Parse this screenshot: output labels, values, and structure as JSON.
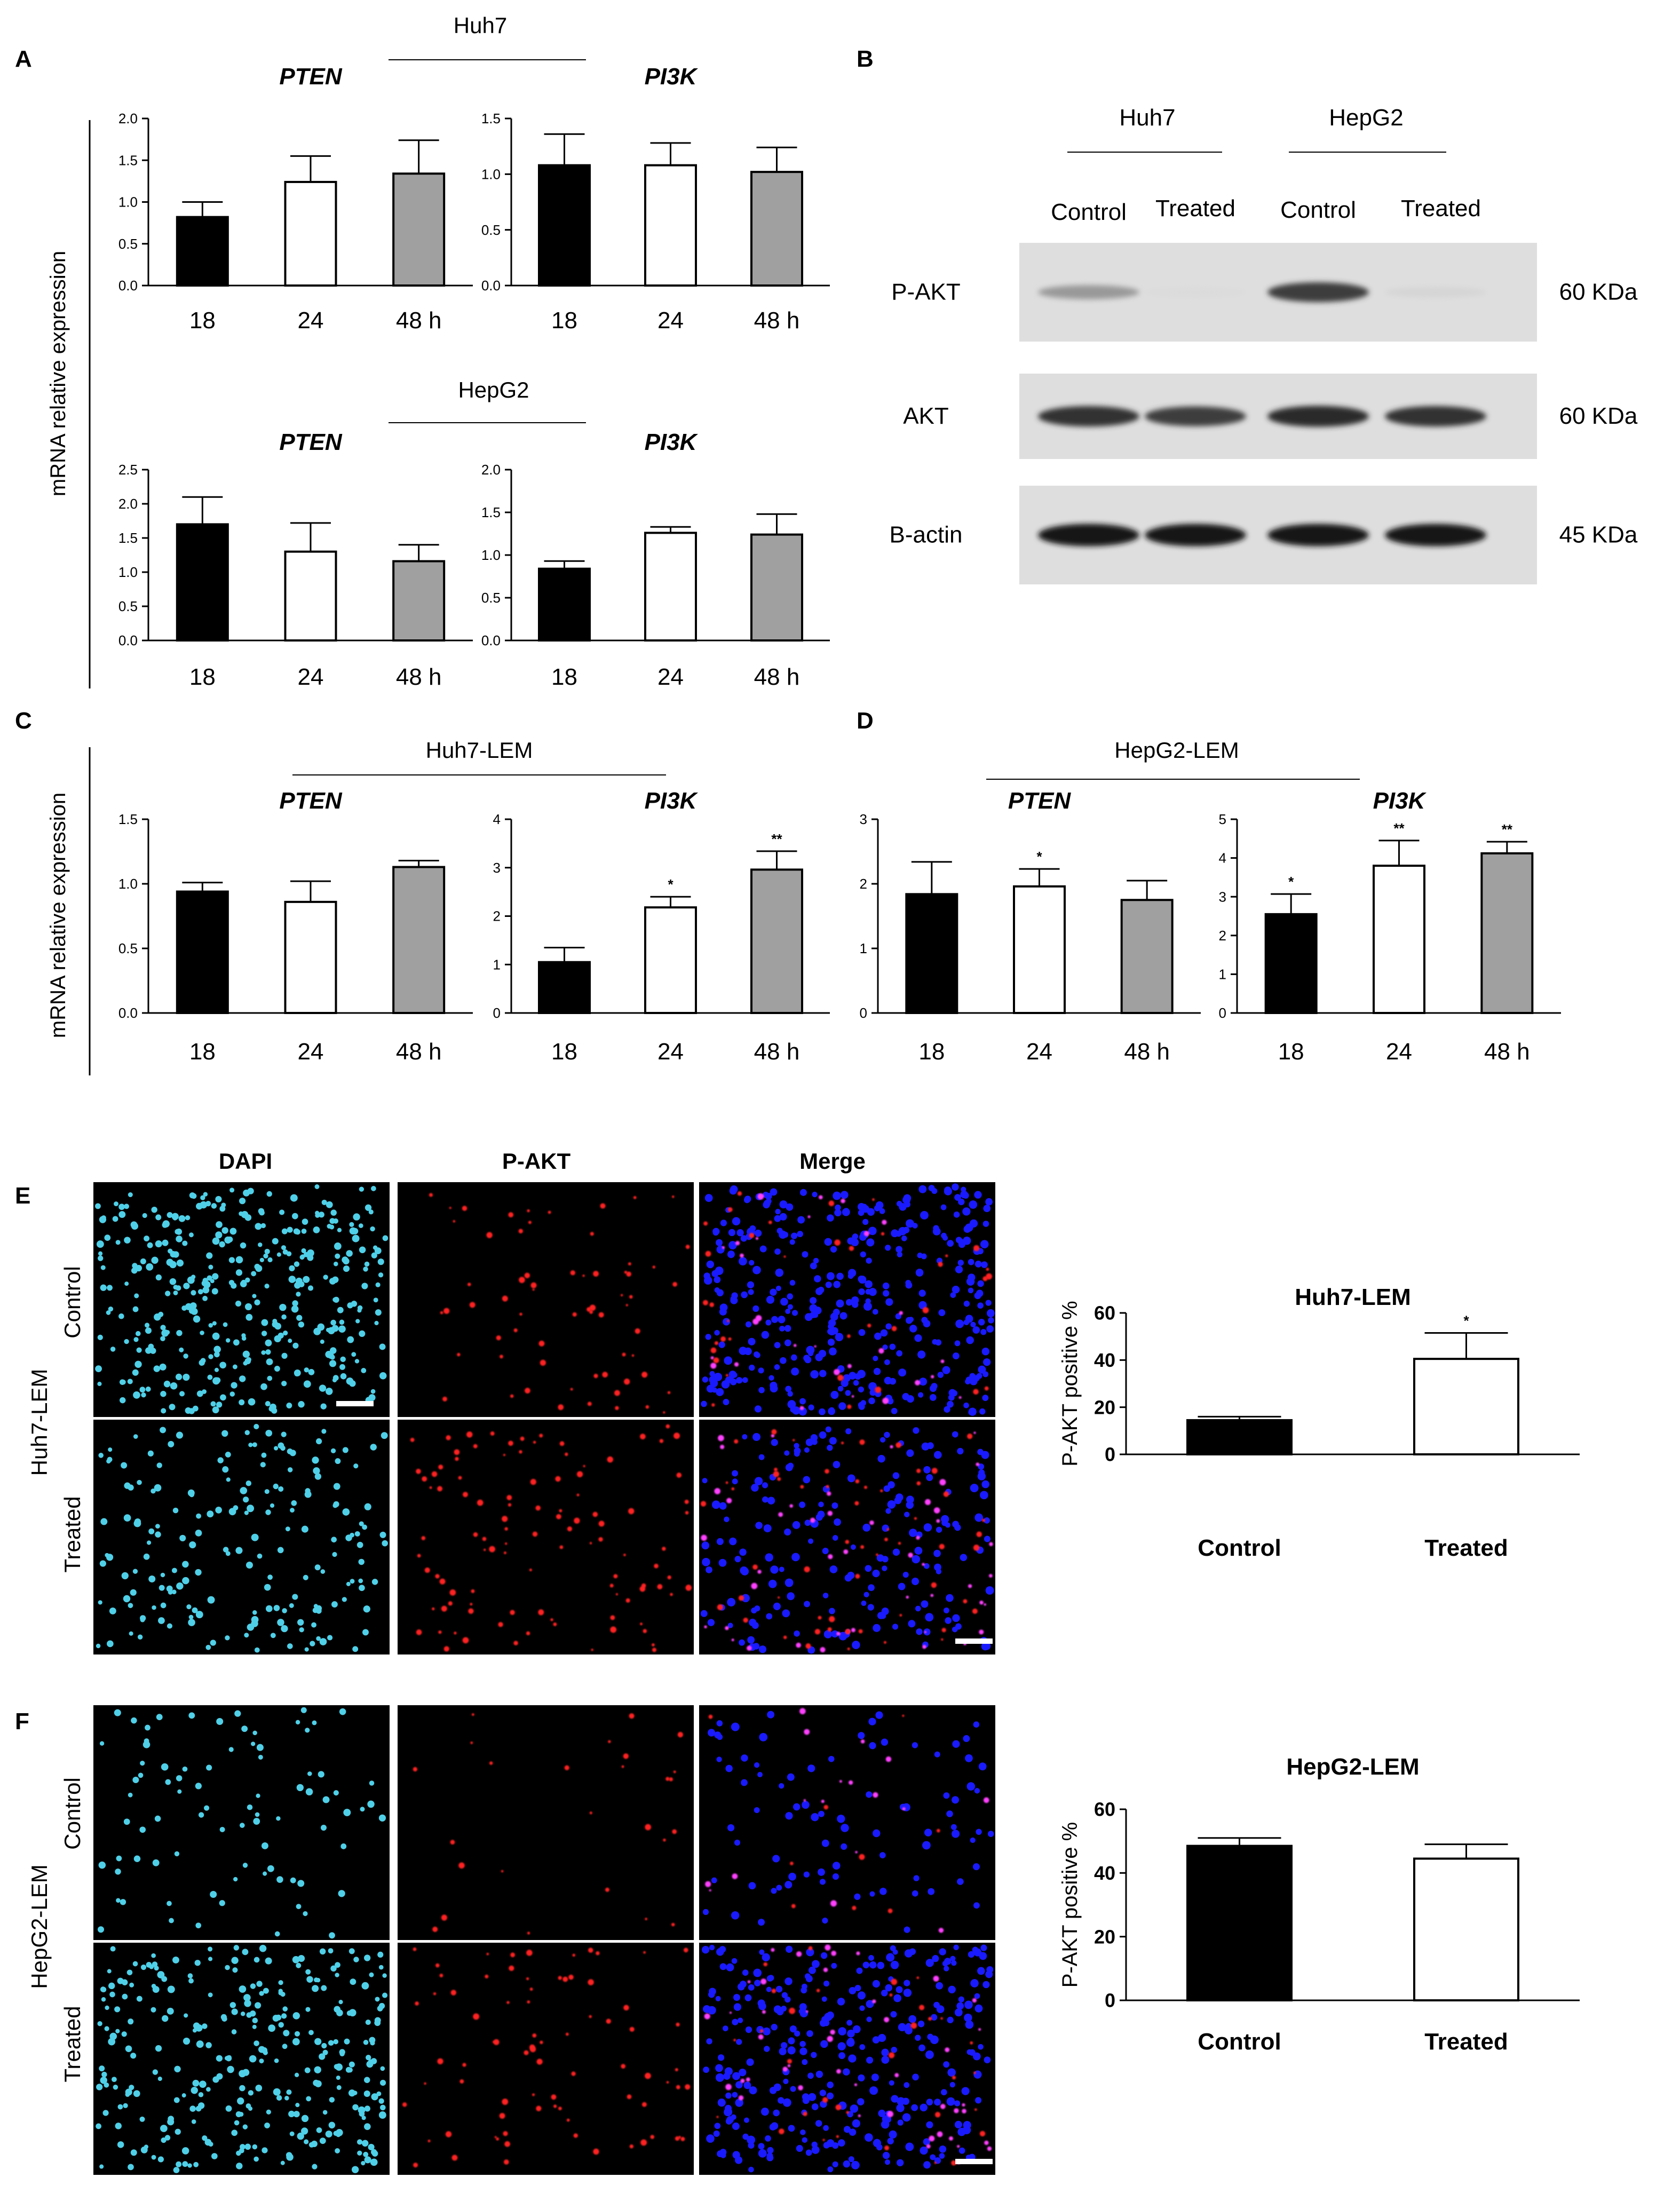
{
  "panel_labels": [
    "A",
    "B",
    "C",
    "D",
    "E",
    "F"
  ],
  "colors": {
    "bar_18": "#000000",
    "bar_24": "#ffffff",
    "bar_48": "#a0a0a0",
    "dapi": "#4fd0e8",
    "pakt": "#ff2020",
    "merge_blue": "#1a1aff",
    "merge_pink": "#ff40ff",
    "if_bg": "#000000"
  },
  "panelA": {
    "y_axis_label": "mRNA relative expression",
    "group_huh7": "Huh7",
    "group_hepg2": "HepG2"
  },
  "panelB": {
    "group_huh7": "Huh7",
    "group_hepg2": "HepG2",
    "lanes": [
      "Control",
      "Treated",
      "Control",
      "Treated"
    ],
    "rows": [
      {
        "label": "P-AKT",
        "size": "60 KDa",
        "intensity": [
          0.35,
          0.03,
          0.8,
          0.06
        ]
      },
      {
        "label": "AKT",
        "size": "60 KDa",
        "intensity": [
          0.85,
          0.8,
          0.9,
          0.85
        ]
      },
      {
        "label": "B-actin",
        "size": "45 KDa",
        "intensity": [
          1.0,
          1.0,
          1.0,
          1.0
        ]
      }
    ]
  },
  "panelC": {
    "y_axis_label": "mRNA relative expression",
    "group": "Huh7-LEM"
  },
  "panelD": {
    "group": "HepG2-LEM"
  },
  "panelE": {
    "columns": [
      "DAPI",
      "P-AKT",
      "Merge"
    ],
    "row_group": "Huh7-LEM",
    "rows": [
      "Control",
      "Treated"
    ],
    "densities": [
      {
        "dapi": 0.9,
        "pakt": 0.25
      },
      {
        "dapi": 0.45,
        "pakt": 0.4
      }
    ]
  },
  "panelF": {
    "row_group": "HepG2-LEM",
    "rows": [
      "Control",
      "Treated"
    ],
    "densities": [
      {
        "dapi": 0.2,
        "pakt": 0.1
      },
      {
        "dapi": 0.75,
        "pakt": 0.3
      }
    ]
  },
  "chart_data": [
    {
      "id": "A-huh7-pten",
      "type": "bar",
      "title": "PTEN",
      "categories": [
        "18",
        "24",
        "48 h"
      ],
      "values": [
        0.82,
        1.24,
        1.34
      ],
      "errors": [
        0.18,
        0.31,
        0.4
      ],
      "ylim": [
        0,
        2.0
      ],
      "yticks": [
        "0.0",
        "0.5",
        "1.0",
        "1.5",
        "2.0"
      ],
      "sig": [
        "",
        "",
        ""
      ]
    },
    {
      "id": "A-huh7-pi3k",
      "type": "bar",
      "title": "PI3K",
      "categories": [
        "18",
        "24",
        "48 h"
      ],
      "values": [
        1.08,
        1.08,
        1.02
      ],
      "errors": [
        0.28,
        0.2,
        0.22
      ],
      "ylim": [
        0,
        1.5
      ],
      "yticks": [
        "0.0",
        "0.5",
        "1.0",
        "1.5"
      ],
      "sig": [
        "",
        "",
        ""
      ]
    },
    {
      "id": "A-hepg2-pten",
      "type": "bar",
      "title": "PTEN",
      "categories": [
        "18",
        "24",
        "48 h"
      ],
      "values": [
        1.7,
        1.3,
        1.16
      ],
      "errors": [
        0.4,
        0.42,
        0.24
      ],
      "ylim": [
        0,
        2.5
      ],
      "yticks": [
        "0.0",
        "0.5",
        "1.0",
        "1.5",
        "2.0",
        "2.5"
      ],
      "sig": [
        "",
        "",
        ""
      ]
    },
    {
      "id": "A-hepg2-pi3k",
      "type": "bar",
      "title": "PI3K",
      "categories": [
        "18",
        "24",
        "48 h"
      ],
      "values": [
        0.84,
        1.26,
        1.24
      ],
      "errors": [
        0.09,
        0.07,
        0.24
      ],
      "ylim": [
        0,
        2.0
      ],
      "yticks": [
        "0.0",
        "0.5",
        "1.0",
        "1.5",
        "2.0"
      ],
      "sig": [
        "",
        "",
        ""
      ]
    },
    {
      "id": "C-pten",
      "type": "bar",
      "title": "PTEN",
      "categories": [
        "18",
        "24",
        "48 h"
      ],
      "values": [
        0.94,
        0.86,
        1.13
      ],
      "errors": [
        0.07,
        0.16,
        0.05
      ],
      "ylim": [
        0,
        1.5
      ],
      "yticks": [
        "0.0",
        "0.5",
        "1.0",
        "1.5"
      ],
      "sig": [
        "",
        "",
        ""
      ]
    },
    {
      "id": "C-pi3k",
      "type": "bar",
      "title": "PI3K",
      "categories": [
        "18",
        "24",
        "48 h"
      ],
      "values": [
        1.05,
        2.18,
        2.96
      ],
      "errors": [
        0.3,
        0.22,
        0.38
      ],
      "ylim": [
        0,
        4
      ],
      "yticks": [
        "0",
        "1",
        "2",
        "3",
        "4"
      ],
      "sig": [
        "",
        "*",
        "**"
      ]
    },
    {
      "id": "D-pten",
      "type": "bar",
      "title": "PTEN",
      "categories": [
        "18",
        "24",
        "48 h"
      ],
      "values": [
        1.84,
        1.96,
        1.75
      ],
      "errors": [
        0.5,
        0.27,
        0.3
      ],
      "ylim": [
        0,
        3
      ],
      "yticks": [
        "0",
        "1",
        "2",
        "3"
      ],
      "sig": [
        "",
        "*",
        ""
      ]
    },
    {
      "id": "D-pi3k",
      "type": "bar",
      "title": "PI3K",
      "categories": [
        "18",
        "24",
        "48 h"
      ],
      "values": [
        2.55,
        3.8,
        4.12
      ],
      "errors": [
        0.52,
        0.65,
        0.3
      ],
      "ylim": [
        0,
        5
      ],
      "yticks": [
        "0",
        "1",
        "2",
        "3",
        "4",
        "5"
      ],
      "sig": [
        "*",
        "**",
        "**"
      ]
    },
    {
      "id": "E-bar",
      "type": "bar",
      "title": "Huh7-LEM",
      "ylabel": "P-AKT positive %",
      "categories": [
        "Control",
        "Treated"
      ],
      "values": [
        14.5,
        40.5
      ],
      "errors": [
        1.5,
        11
      ],
      "ylim": [
        0,
        60
      ],
      "yticks": [
        "0",
        "20",
        "40",
        "60"
      ],
      "sig": [
        "",
        "*"
      ]
    },
    {
      "id": "F-bar",
      "type": "bar",
      "title": "HepG2-LEM",
      "ylabel": "P-AKT positive %",
      "categories": [
        "Control",
        "Treated"
      ],
      "values": [
        48.5,
        44.5
      ],
      "errors": [
        2.5,
        4.5
      ],
      "ylim": [
        0,
        60
      ],
      "yticks": [
        "0",
        "20",
        "40",
        "60"
      ],
      "sig": [
        "",
        ""
      ]
    }
  ]
}
